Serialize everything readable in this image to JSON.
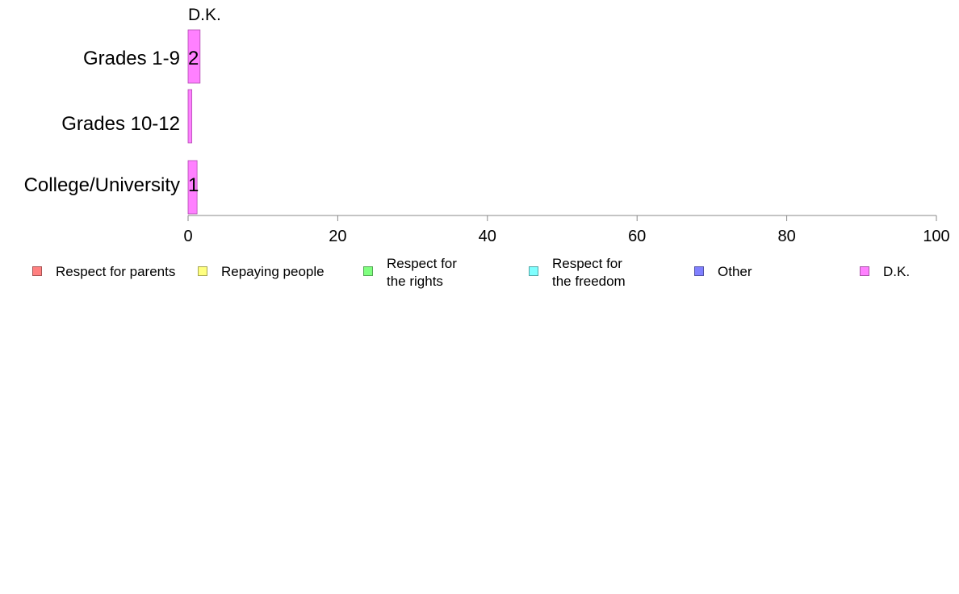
{
  "chart_data": {
    "type": "bar",
    "orientation": "horizontal",
    "stacked": true,
    "top_label": "D.K.",
    "categories": [
      "Grades 1-9",
      "Grades 10-12",
      "College/University"
    ],
    "series": [
      {
        "name": "Respect for parents",
        "color": "#ff8080",
        "values": [
          0,
          0,
          0
        ]
      },
      {
        "name": "Repaying people",
        "color": "#ffff80",
        "values": [
          0,
          0,
          0
        ]
      },
      {
        "name": "Respect for\nthe rights",
        "color": "#80ff80",
        "values": [
          0,
          0,
          0
        ]
      },
      {
        "name": "Respect for\nthe freedom",
        "color": "#80ffff",
        "values": [
          0,
          0,
          0
        ]
      },
      {
        "name": "Other",
        "color": "#8080ff",
        "values": [
          0,
          0,
          0
        ]
      },
      {
        "name": "D.K.",
        "color": "#ff80ff",
        "values": [
          1.6,
          0.5,
          1.2
        ]
      }
    ],
    "data_labels": [
      "2",
      "",
      "1"
    ],
    "xlim": [
      0,
      100
    ],
    "xticks": [
      "0",
      "20",
      "40",
      "60",
      "80",
      "100"
    ],
    "grid": false,
    "legend_position": "bottom"
  }
}
